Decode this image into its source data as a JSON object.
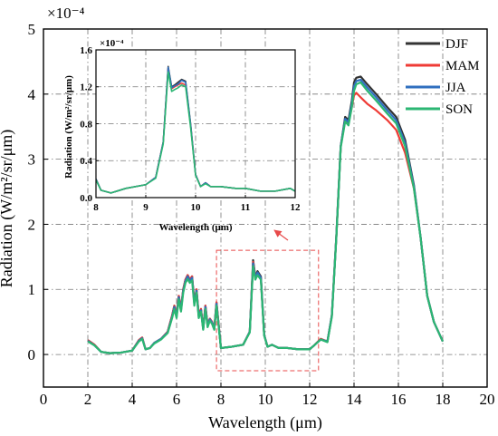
{
  "chart_data": [
    {
      "type": "line",
      "title": "",
      "xlabel": "Wavelength (μm)",
      "ylabel": "Radiation (W/m²/sr/μm)",
      "y_multiplier": "×10⁻⁴",
      "xlim": [
        0,
        20
      ],
      "ylim": [
        -0.5,
        5
      ],
      "x_ticks": [
        "0",
        "2",
        "4",
        "6",
        "8",
        "10",
        "12",
        "14",
        "16",
        "18",
        "20"
      ],
      "y_ticks": [
        "0",
        "1",
        "2",
        "3",
        "4",
        "5"
      ],
      "grid": true,
      "legend_position": "top-right",
      "series": [
        {
          "name": "DJF",
          "color": "#333333",
          "x": [
            2.0,
            2.3,
            2.6,
            3.0,
            3.5,
            4.0,
            4.3,
            4.45,
            4.6,
            4.8,
            5.0,
            5.3,
            5.6,
            5.8,
            5.9,
            6.0,
            6.1,
            6.2,
            6.3,
            6.4,
            6.5,
            6.6,
            6.7,
            6.8,
            6.9,
            7.0,
            7.1,
            7.2,
            7.3,
            7.4,
            7.5,
            7.6,
            7.7,
            7.8,
            8.0,
            8.5,
            9.0,
            9.3,
            9.45,
            9.55,
            9.65,
            9.8,
            9.95,
            10.1,
            10.3,
            10.6,
            11.0,
            11.5,
            12.0,
            12.2,
            12.5,
            12.8,
            13.0,
            13.2,
            13.4,
            13.6,
            13.75,
            13.9,
            14.0,
            14.1,
            14.3,
            14.6,
            15.0,
            15.5,
            15.9,
            16.3,
            16.7,
            17.0,
            17.3,
            17.6,
            18.0
          ],
          "values": [
            0.22,
            0.15,
            0.04,
            0.02,
            0.03,
            0.06,
            0.22,
            0.26,
            0.08,
            0.1,
            0.18,
            0.24,
            0.35,
            0.6,
            0.75,
            0.6,
            0.9,
            0.7,
            1.0,
            1.15,
            1.22,
            1.15,
            1.2,
            0.8,
            1.0,
            0.6,
            0.7,
            0.4,
            0.75,
            0.45,
            0.55,
            0.5,
            0.4,
            0.8,
            0.1,
            0.12,
            0.15,
            0.35,
            1.45,
            1.2,
            1.28,
            1.2,
            0.3,
            0.12,
            0.15,
            0.1,
            0.1,
            0.08,
            0.08,
            0.14,
            0.24,
            0.2,
            0.6,
            1.8,
            3.2,
            3.65,
            3.6,
            3.9,
            4.18,
            4.25,
            4.27,
            4.15,
            4.0,
            3.8,
            3.65,
            3.3,
            2.6,
            1.8,
            0.9,
            0.5,
            0.2
          ]
        },
        {
          "name": "MAM",
          "color": "#ef3b36",
          "x": [
            2.0,
            2.3,
            2.6,
            3.0,
            3.5,
            4.0,
            4.3,
            4.45,
            4.6,
            4.8,
            5.0,
            5.3,
            5.6,
            5.8,
            5.9,
            6.0,
            6.1,
            6.2,
            6.3,
            6.4,
            6.5,
            6.6,
            6.7,
            6.8,
            6.9,
            7.0,
            7.1,
            7.2,
            7.3,
            7.4,
            7.5,
            7.6,
            7.7,
            7.8,
            8.0,
            8.5,
            9.0,
            9.3,
            9.45,
            9.55,
            9.65,
            9.8,
            9.95,
            10.1,
            10.3,
            10.6,
            11.0,
            11.5,
            12.0,
            12.2,
            12.5,
            12.8,
            13.0,
            13.2,
            13.4,
            13.6,
            13.75,
            13.9,
            14.0,
            14.1,
            14.3,
            14.6,
            15.0,
            15.5,
            15.9,
            16.3,
            16.7,
            17.0,
            17.3,
            17.6,
            18.0
          ],
          "values": [
            0.22,
            0.15,
            0.04,
            0.02,
            0.03,
            0.06,
            0.22,
            0.26,
            0.08,
            0.1,
            0.18,
            0.24,
            0.35,
            0.6,
            0.75,
            0.6,
            0.9,
            0.7,
            1.0,
            1.15,
            1.22,
            1.15,
            1.2,
            0.8,
            1.0,
            0.6,
            0.7,
            0.4,
            0.75,
            0.45,
            0.55,
            0.5,
            0.4,
            0.8,
            0.1,
            0.12,
            0.15,
            0.35,
            1.42,
            1.2,
            1.25,
            1.18,
            0.3,
            0.12,
            0.15,
            0.1,
            0.1,
            0.08,
            0.08,
            0.14,
            0.24,
            0.2,
            0.6,
            1.8,
            3.2,
            3.6,
            3.55,
            3.8,
            3.98,
            4.02,
            3.95,
            3.85,
            3.75,
            3.6,
            3.45,
            3.1,
            2.55,
            1.8,
            0.9,
            0.5,
            0.2
          ]
        },
        {
          "name": "JJA",
          "color": "#2f6fbf",
          "x": [
            2.0,
            2.3,
            2.6,
            3.0,
            3.5,
            4.0,
            4.3,
            4.45,
            4.6,
            4.8,
            5.0,
            5.3,
            5.6,
            5.8,
            5.9,
            6.0,
            6.1,
            6.2,
            6.3,
            6.4,
            6.5,
            6.6,
            6.7,
            6.8,
            6.9,
            7.0,
            7.1,
            7.2,
            7.3,
            7.4,
            7.5,
            7.6,
            7.7,
            7.8,
            8.0,
            8.5,
            9.0,
            9.3,
            9.45,
            9.55,
            9.65,
            9.8,
            9.95,
            10.1,
            10.3,
            10.6,
            11.0,
            11.5,
            12.0,
            12.2,
            12.5,
            12.8,
            13.0,
            13.2,
            13.4,
            13.6,
            13.75,
            13.9,
            14.0,
            14.1,
            14.3,
            14.6,
            15.0,
            15.5,
            15.9,
            16.3,
            16.7,
            17.0,
            17.3,
            17.6,
            18.0
          ],
          "values": [
            0.21,
            0.14,
            0.04,
            0.02,
            0.03,
            0.06,
            0.21,
            0.25,
            0.08,
            0.1,
            0.18,
            0.24,
            0.34,
            0.58,
            0.73,
            0.58,
            0.88,
            0.68,
            0.98,
            1.13,
            1.2,
            1.13,
            1.18,
            0.78,
            0.98,
            0.58,
            0.68,
            0.39,
            0.73,
            0.44,
            0.54,
            0.49,
            0.39,
            0.78,
            0.1,
            0.12,
            0.15,
            0.35,
            1.4,
            1.18,
            1.26,
            1.18,
            0.3,
            0.12,
            0.15,
            0.1,
            0.1,
            0.08,
            0.08,
            0.14,
            0.23,
            0.2,
            0.6,
            1.8,
            3.2,
            3.62,
            3.57,
            3.85,
            4.12,
            4.2,
            4.22,
            4.1,
            3.95,
            3.75,
            3.6,
            3.25,
            2.58,
            1.8,
            0.9,
            0.5,
            0.2
          ]
        },
        {
          "name": "SON",
          "color": "#2bb673",
          "x": [
            2.0,
            2.3,
            2.6,
            3.0,
            3.5,
            4.0,
            4.3,
            4.45,
            4.6,
            4.8,
            5.0,
            5.3,
            5.6,
            5.8,
            5.9,
            6.0,
            6.1,
            6.2,
            6.3,
            6.4,
            6.5,
            6.6,
            6.7,
            6.8,
            6.9,
            7.0,
            7.1,
            7.2,
            7.3,
            7.4,
            7.5,
            7.6,
            7.7,
            7.8,
            8.0,
            8.5,
            9.0,
            9.3,
            9.45,
            9.55,
            9.65,
            9.8,
            9.95,
            10.1,
            10.3,
            10.6,
            11.0,
            11.5,
            12.0,
            12.2,
            12.5,
            12.8,
            13.0,
            13.2,
            13.4,
            13.6,
            13.75,
            13.9,
            14.0,
            14.1,
            14.3,
            14.6,
            15.0,
            15.5,
            15.9,
            16.3,
            16.7,
            17.0,
            17.3,
            17.6,
            18.0
          ],
          "values": [
            0.2,
            0.14,
            0.04,
            0.02,
            0.03,
            0.06,
            0.2,
            0.24,
            0.08,
            0.1,
            0.17,
            0.23,
            0.33,
            0.56,
            0.7,
            0.56,
            0.85,
            0.66,
            0.95,
            1.1,
            1.16,
            1.1,
            1.14,
            0.75,
            0.95,
            0.56,
            0.66,
            0.38,
            0.7,
            0.42,
            0.52,
            0.47,
            0.38,
            0.75,
            0.1,
            0.12,
            0.15,
            0.34,
            1.36,
            1.15,
            1.22,
            1.15,
            0.29,
            0.12,
            0.15,
            0.1,
            0.1,
            0.08,
            0.08,
            0.14,
            0.23,
            0.19,
            0.58,
            1.78,
            3.18,
            3.58,
            3.52,
            3.8,
            4.05,
            4.15,
            4.18,
            4.05,
            3.9,
            3.7,
            3.55,
            3.2,
            2.55,
            1.8,
            0.9,
            0.5,
            0.2
          ]
        }
      ],
      "highlight_box": {
        "x_range": [
          7.8,
          12.4
        ],
        "y_range": [
          -0.25,
          1.6
        ],
        "color": "#e84b4b"
      }
    },
    {
      "type": "line",
      "title": "",
      "xlabel": "Wavelength (μm)",
      "ylabel": "Radiation (W/m²/sr/μm)",
      "y_multiplier": "×10⁻⁴",
      "xlim": [
        8,
        12
      ],
      "ylim": [
        0,
        1.6
      ],
      "x_ticks": [
        "8",
        "9",
        "10",
        "11",
        "12"
      ],
      "y_ticks": [
        "0.0",
        "0.4",
        "0.8",
        "1.2",
        "1.6"
      ],
      "grid": true,
      "series": [
        {
          "name": "DJF",
          "color": "#333333",
          "x": [
            8.0,
            8.1,
            8.3,
            8.6,
            9.0,
            9.2,
            9.35,
            9.45,
            9.52,
            9.58,
            9.65,
            9.72,
            9.8,
            9.9,
            10.0,
            10.1,
            10.2,
            10.3,
            10.5,
            10.8,
            11.0,
            11.3,
            11.6,
            11.9,
            12.0
          ],
          "values": [
            0.2,
            0.08,
            0.05,
            0.1,
            0.14,
            0.22,
            0.6,
            1.42,
            1.2,
            1.22,
            1.25,
            1.28,
            1.26,
            0.8,
            0.25,
            0.12,
            0.16,
            0.12,
            0.12,
            0.1,
            0.1,
            0.07,
            0.07,
            0.1,
            0.07
          ]
        },
        {
          "name": "MAM",
          "color": "#ef3b36",
          "x": [
            8.0,
            8.1,
            8.3,
            8.6,
            9.0,
            9.2,
            9.35,
            9.45,
            9.52,
            9.58,
            9.65,
            9.72,
            9.8,
            9.9,
            10.0,
            10.1,
            10.2,
            10.3,
            10.5,
            10.8,
            11.0,
            11.3,
            11.6,
            11.9,
            12.0
          ],
          "values": [
            0.2,
            0.08,
            0.05,
            0.1,
            0.14,
            0.22,
            0.6,
            1.4,
            1.18,
            1.2,
            1.22,
            1.24,
            1.22,
            0.78,
            0.25,
            0.12,
            0.16,
            0.12,
            0.12,
            0.1,
            0.1,
            0.07,
            0.07,
            0.1,
            0.07
          ]
        },
        {
          "name": "JJA",
          "color": "#2f6fbf",
          "x": [
            8.0,
            8.1,
            8.3,
            8.6,
            9.0,
            9.2,
            9.35,
            9.45,
            9.52,
            9.58,
            9.65,
            9.72,
            9.8,
            9.9,
            10.0,
            10.1,
            10.2,
            10.3,
            10.5,
            10.8,
            11.0,
            11.3,
            11.6,
            11.9,
            12.0
          ],
          "values": [
            0.2,
            0.08,
            0.05,
            0.1,
            0.14,
            0.22,
            0.6,
            1.41,
            1.19,
            1.21,
            1.23,
            1.27,
            1.25,
            0.79,
            0.25,
            0.12,
            0.16,
            0.12,
            0.12,
            0.1,
            0.1,
            0.07,
            0.07,
            0.1,
            0.07
          ]
        },
        {
          "name": "SON",
          "color": "#2bb673",
          "x": [
            8.0,
            8.1,
            8.3,
            8.6,
            9.0,
            9.2,
            9.35,
            9.45,
            9.52,
            9.58,
            9.65,
            9.72,
            9.8,
            9.9,
            10.0,
            10.1,
            10.2,
            10.3,
            10.5,
            10.8,
            11.0,
            11.3,
            11.6,
            11.9,
            12.0
          ],
          "values": [
            0.19,
            0.08,
            0.05,
            0.1,
            0.14,
            0.21,
            0.58,
            1.36,
            1.15,
            1.17,
            1.19,
            1.22,
            1.2,
            0.76,
            0.24,
            0.12,
            0.15,
            0.12,
            0.12,
            0.1,
            0.1,
            0.07,
            0.07,
            0.1,
            0.07
          ]
        }
      ]
    }
  ]
}
